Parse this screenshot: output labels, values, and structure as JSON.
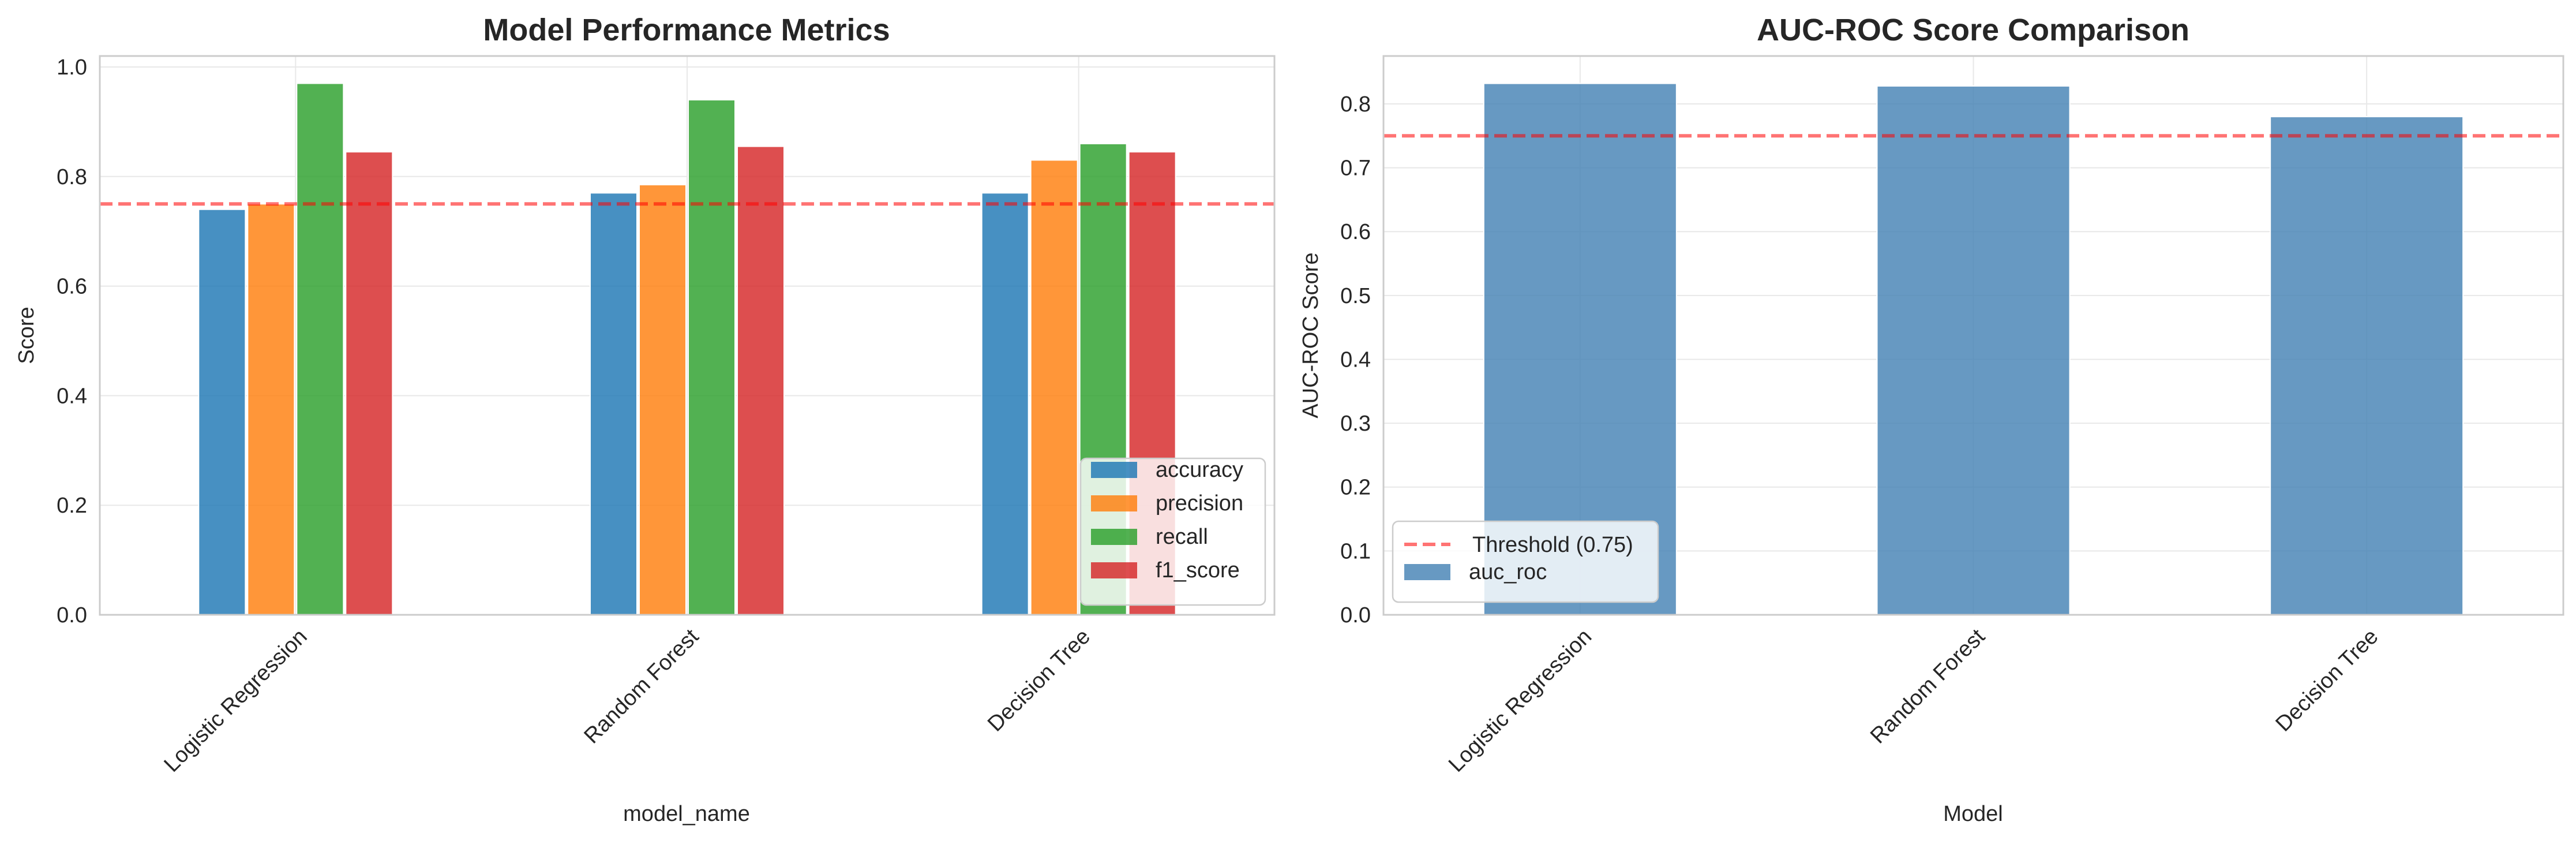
{
  "chart_data": [
    {
      "type": "bar",
      "title": "Model Performance Metrics",
      "xlabel": "model_name",
      "ylabel": "Score",
      "categories": [
        "Logistic Regression",
        "Random Forest",
        "Decision Tree"
      ],
      "series": [
        {
          "name": "accuracy",
          "color": "#1f77b4",
          "values": [
            0.74,
            0.77,
            0.77
          ]
        },
        {
          "name": "precision",
          "color": "#ff7f0e",
          "values": [
            0.75,
            0.785,
            0.83
          ]
        },
        {
          "name": "recall",
          "color": "#2ca02c",
          "values": [
            0.97,
            0.94,
            0.86
          ]
        },
        {
          "name": "f1_score",
          "color": "#d62728",
          "values": [
            0.845,
            0.855,
            0.845
          ]
        }
      ],
      "ylim": [
        0,
        1.02
      ],
      "yticks": [
        "0.0",
        "0.2",
        "0.4",
        "0.6",
        "0.8",
        "1.0"
      ],
      "threshold": 0.75,
      "grid": true,
      "legend_position": "lower-right"
    },
    {
      "type": "bar",
      "title": "AUC-ROC Score Comparison",
      "xlabel": "Model",
      "ylabel": "AUC-ROC Score",
      "categories": [
        "Logistic Regression",
        "Random Forest",
        "Decision Tree"
      ],
      "series": [
        {
          "name": "auc_roc",
          "color": "#4682b4",
          "values": [
            0.832,
            0.828,
            0.78
          ]
        }
      ],
      "ylim": [
        0,
        0.875
      ],
      "yticks": [
        "0.0",
        "0.1",
        "0.2",
        "0.3",
        "0.4",
        "0.5",
        "0.6",
        "0.7",
        "0.8"
      ],
      "threshold": 0.75,
      "threshold_label": "Threshold (0.75)",
      "threshold_color": "#ff0000",
      "grid": true,
      "legend_position": "lower-left"
    }
  ]
}
